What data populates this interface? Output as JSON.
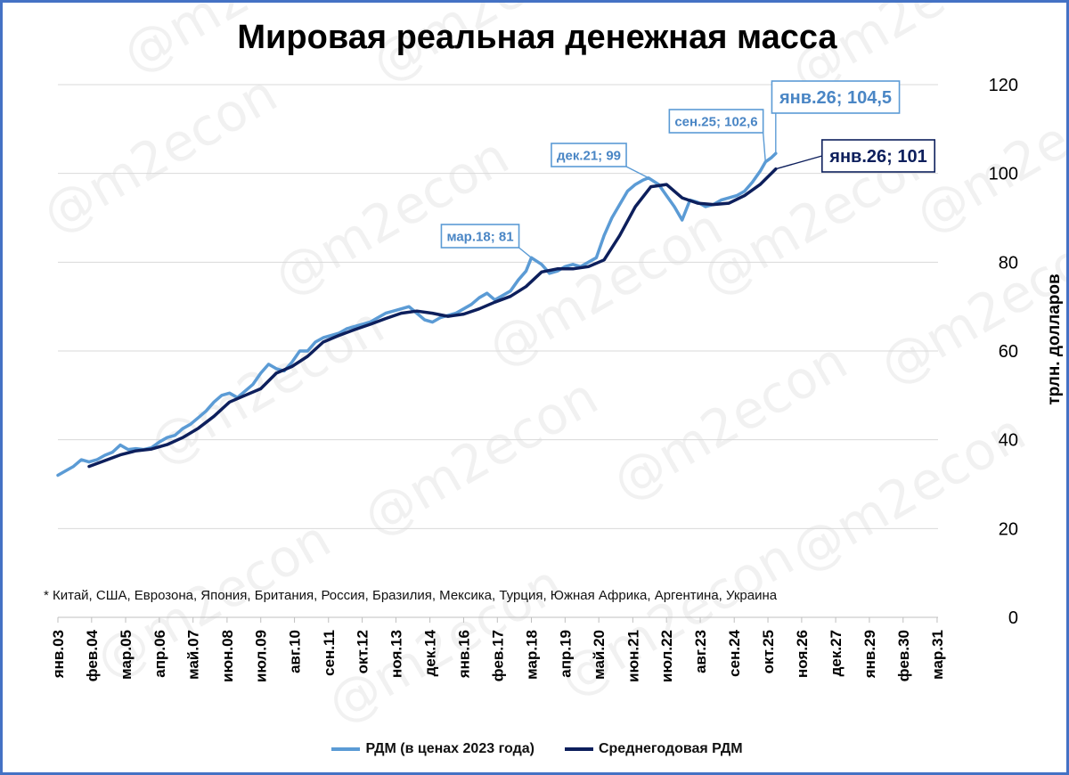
{
  "title": "Мировая реальная денежная масса",
  "y_axis_label": "трлн. долларов",
  "footnote": "* Китай, США, Еврозона, Япония, Британия, Россия, Бразилия, Мексика, Турция, Южная Африка, Аргентина, Украина",
  "watermark": "@m2econ",
  "colors": {
    "rdm": "#5b9bd5",
    "avg": "#0d1f5c",
    "grid": "#d9d9d9",
    "frame": "#4472c4"
  },
  "legend": [
    {
      "label": "РДМ (в ценах 2023 года)",
      "color": "#5b9bd5"
    },
    {
      "label": "Среднегодовая РДМ",
      "color": "#0d1f5c"
    }
  ],
  "chart_data": {
    "type": "line",
    "x_unit": "years",
    "xlim": [
      2003.0,
      2031.2
    ],
    "ylim": [
      0,
      120
    ],
    "y_ticks": [
      0,
      20,
      40,
      60,
      80,
      100,
      120
    ],
    "y_axis_side": "right",
    "grid": "horizontal",
    "legend_position": "bottom",
    "x_tick_labels": [
      {
        "x": 2003.0,
        "label": "янв.03"
      },
      {
        "x": 2004.08,
        "label": "фев.04"
      },
      {
        "x": 2005.17,
        "label": "мар.05"
      },
      {
        "x": 2006.25,
        "label": "апр.06"
      },
      {
        "x": 2007.33,
        "label": "май.07"
      },
      {
        "x": 2008.42,
        "label": "июн.08"
      },
      {
        "x": 2009.5,
        "label": "июл.09"
      },
      {
        "x": 2010.58,
        "label": "авг.10"
      },
      {
        "x": 2011.67,
        "label": "сен.11"
      },
      {
        "x": 2012.75,
        "label": "окт.12"
      },
      {
        "x": 2013.83,
        "label": "ноя.13"
      },
      {
        "x": 2014.92,
        "label": "дек.14"
      },
      {
        "x": 2016.0,
        "label": "янв.16"
      },
      {
        "x": 2017.08,
        "label": "фев.17"
      },
      {
        "x": 2018.17,
        "label": "мар.18"
      },
      {
        "x": 2019.25,
        "label": "апр.19"
      },
      {
        "x": 2020.33,
        "label": "май.20"
      },
      {
        "x": 2021.42,
        "label": "июн.21"
      },
      {
        "x": 2022.5,
        "label": "июл.22"
      },
      {
        "x": 2023.58,
        "label": "авг.23"
      },
      {
        "x": 2024.67,
        "label": "сен.24"
      },
      {
        "x": 2025.75,
        "label": "окт.25"
      },
      {
        "x": 2026.83,
        "label": "ноя.26"
      },
      {
        "x": 2027.92,
        "label": "дек.27"
      },
      {
        "x": 2029.0,
        "label": "янв.29"
      },
      {
        "x": 2030.08,
        "label": "фев.30"
      },
      {
        "x": 2031.17,
        "label": "мар.31"
      }
    ],
    "series": [
      {
        "name": "РДМ (в ценах 2023 года)",
        "color": "#5b9bd5",
        "points": [
          [
            2003.0,
            32.0
          ],
          [
            2003.25,
            33.0
          ],
          [
            2003.5,
            34.0
          ],
          [
            2003.75,
            35.5
          ],
          [
            2004.0,
            35.0
          ],
          [
            2004.25,
            35.5
          ],
          [
            2004.5,
            36.5
          ],
          [
            2004.75,
            37.2
          ],
          [
            2005.0,
            38.8
          ],
          [
            2005.25,
            37.8
          ],
          [
            2005.5,
            38.0
          ],
          [
            2005.75,
            37.8
          ],
          [
            2006.0,
            38.2
          ],
          [
            2006.25,
            39.5
          ],
          [
            2006.5,
            40.5
          ],
          [
            2006.75,
            41.0
          ],
          [
            2007.0,
            42.5
          ],
          [
            2007.25,
            43.5
          ],
          [
            2007.5,
            45.0
          ],
          [
            2007.75,
            46.5
          ],
          [
            2008.0,
            48.5
          ],
          [
            2008.25,
            50.0
          ],
          [
            2008.5,
            50.5
          ],
          [
            2008.75,
            49.5
          ],
          [
            2009.0,
            51.0
          ],
          [
            2009.25,
            52.5
          ],
          [
            2009.5,
            55.0
          ],
          [
            2009.75,
            57.0
          ],
          [
            2010.0,
            56.0
          ],
          [
            2010.25,
            55.5
          ],
          [
            2010.5,
            57.5
          ],
          [
            2010.75,
            60.0
          ],
          [
            2011.0,
            60.0
          ],
          [
            2011.25,
            62.0
          ],
          [
            2011.5,
            63.0
          ],
          [
            2011.75,
            63.5
          ],
          [
            2012.0,
            64.0
          ],
          [
            2012.25,
            65.0
          ],
          [
            2012.5,
            65.5
          ],
          [
            2012.75,
            66.0
          ],
          [
            2013.0,
            66.5
          ],
          [
            2013.25,
            67.5
          ],
          [
            2013.5,
            68.5
          ],
          [
            2013.75,
            69.0
          ],
          [
            2014.0,
            69.5
          ],
          [
            2014.25,
            70.0
          ],
          [
            2014.5,
            68.5
          ],
          [
            2014.75,
            67.0
          ],
          [
            2015.0,
            66.5
          ],
          [
            2015.25,
            67.5
          ],
          [
            2015.5,
            68.0
          ],
          [
            2015.75,
            68.5
          ],
          [
            2016.0,
            69.5
          ],
          [
            2016.25,
            70.5
          ],
          [
            2016.5,
            72.0
          ],
          [
            2016.75,
            73.0
          ],
          [
            2017.0,
            71.5
          ],
          [
            2017.25,
            72.5
          ],
          [
            2017.5,
            73.5
          ],
          [
            2017.75,
            76.0
          ],
          [
            2018.0,
            78.0
          ],
          [
            2018.17,
            81.0
          ],
          [
            2018.5,
            79.5
          ],
          [
            2018.75,
            77.5
          ],
          [
            2019.0,
            78.0
          ],
          [
            2019.25,
            79.0
          ],
          [
            2019.5,
            79.5
          ],
          [
            2019.75,
            79.0
          ],
          [
            2020.0,
            80.0
          ],
          [
            2020.25,
            81.0
          ],
          [
            2020.5,
            86.0
          ],
          [
            2020.75,
            90.0
          ],
          [
            2021.0,
            93.0
          ],
          [
            2021.25,
            96.0
          ],
          [
            2021.5,
            97.5
          ],
          [
            2021.75,
            98.5
          ],
          [
            2021.92,
            99.0
          ],
          [
            2022.25,
            97.5
          ],
          [
            2022.5,
            95.0
          ],
          [
            2022.75,
            92.5
          ],
          [
            2023.0,
            89.5
          ],
          [
            2023.25,
            94.0
          ],
          [
            2023.5,
            93.5
          ],
          [
            2023.75,
            92.5
          ],
          [
            2024.0,
            93.0
          ],
          [
            2024.25,
            94.0
          ],
          [
            2024.5,
            94.5
          ],
          [
            2024.75,
            95.0
          ],
          [
            2025.0,
            96.0
          ],
          [
            2025.25,
            98.0
          ],
          [
            2025.5,
            100.5
          ],
          [
            2025.67,
            102.6
          ],
          [
            2025.85,
            103.5
          ],
          [
            2026.0,
            104.5
          ]
        ]
      },
      {
        "name": "Среднегодовая РДМ",
        "color": "#0d1f5c",
        "points": [
          [
            2004.0,
            34.0
          ],
          [
            2004.5,
            35.3
          ],
          [
            2005.0,
            36.6
          ],
          [
            2005.5,
            37.5
          ],
          [
            2006.0,
            37.9
          ],
          [
            2006.5,
            38.9
          ],
          [
            2007.0,
            40.5
          ],
          [
            2007.5,
            42.6
          ],
          [
            2008.0,
            45.3
          ],
          [
            2008.5,
            48.5
          ],
          [
            2009.0,
            50.0
          ],
          [
            2009.5,
            51.5
          ],
          [
            2010.0,
            55.0
          ],
          [
            2010.5,
            56.5
          ],
          [
            2011.0,
            58.8
          ],
          [
            2011.5,
            62.0
          ],
          [
            2012.0,
            63.5
          ],
          [
            2012.5,
            64.8
          ],
          [
            2013.0,
            66.0
          ],
          [
            2013.5,
            67.3
          ],
          [
            2014.0,
            68.5
          ],
          [
            2014.5,
            69.0
          ],
          [
            2015.0,
            68.5
          ],
          [
            2015.5,
            67.8
          ],
          [
            2016.0,
            68.3
          ],
          [
            2016.5,
            69.5
          ],
          [
            2017.0,
            71.0
          ],
          [
            2017.5,
            72.3
          ],
          [
            2018.0,
            74.5
          ],
          [
            2018.5,
            77.8
          ],
          [
            2019.0,
            78.5
          ],
          [
            2019.5,
            78.5
          ],
          [
            2020.0,
            79.0
          ],
          [
            2020.5,
            80.5
          ],
          [
            2021.0,
            86.0
          ],
          [
            2021.5,
            92.5
          ],
          [
            2022.0,
            97.0
          ],
          [
            2022.5,
            97.5
          ],
          [
            2023.0,
            94.5
          ],
          [
            2023.5,
            93.3
          ],
          [
            2024.0,
            93.0
          ],
          [
            2024.5,
            93.3
          ],
          [
            2025.0,
            95.0
          ],
          [
            2025.5,
            97.5
          ],
          [
            2026.0,
            101.0
          ]
        ]
      }
    ],
    "annotations": [
      {
        "label": "мар.18; 81",
        "series": "РДМ (в ценах 2023 года)",
        "x": 2018.17,
        "y": 81.0,
        "style": "light-small"
      },
      {
        "label": "дек.21; 99",
        "series": "РДМ (в ценах 2023 года)",
        "x": 2021.92,
        "y": 99.0,
        "style": "light-small"
      },
      {
        "label": "сен.25; 102,6",
        "series": "РДМ (в ценах 2023 года)",
        "x": 2025.67,
        "y": 102.6,
        "style": "light-small"
      },
      {
        "label": "янв.26; 104,5",
        "series": "РДМ (в ценах 2023 года)",
        "x": 2026.0,
        "y": 104.5,
        "style": "light-large"
      },
      {
        "label": "янв.26; 101",
        "series": "Среднегодовая РДМ",
        "x": 2026.0,
        "y": 101.0,
        "style": "dark-large"
      }
    ]
  }
}
